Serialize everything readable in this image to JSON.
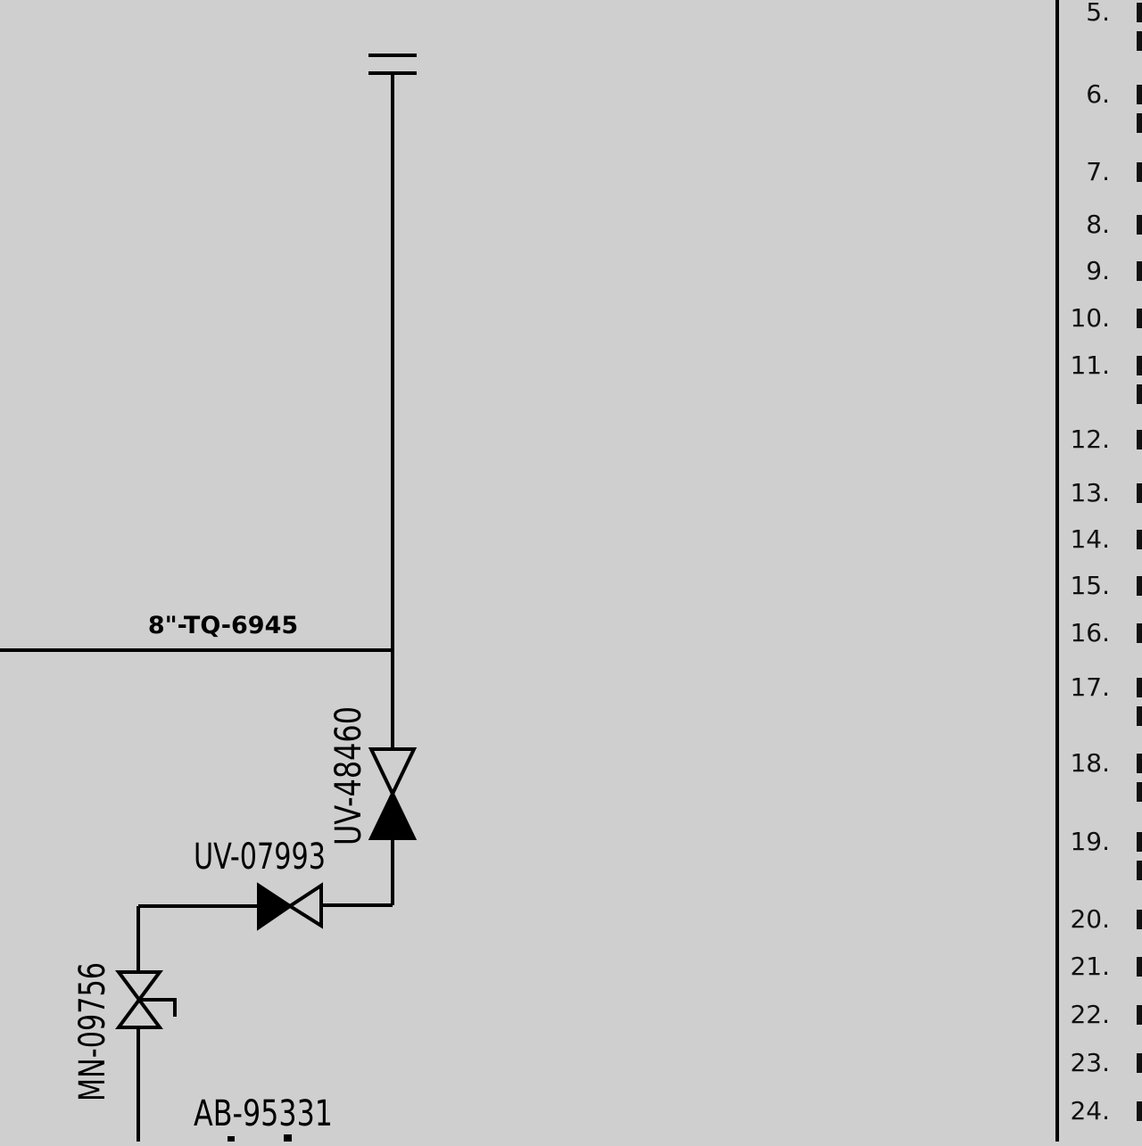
{
  "diagram": {
    "line_label": "8\"-TQ-6945",
    "tags": {
      "uv_48460": "UV-48460",
      "uv_07993": "UV-07993",
      "mn_09756": "MN-09756",
      "ab_95331": "AB-95331"
    }
  },
  "notes": {
    "numbers": [
      "5.",
      "6.",
      "7.",
      "8.",
      "9.",
      "10.",
      "11.",
      "12.",
      "13.",
      "14.",
      "15.",
      "16.",
      "17.",
      "18.",
      "19.",
      "20.",
      "21.",
      "22.",
      "23.",
      "24."
    ]
  },
  "colors": {
    "background": "#cfcfcf",
    "ink": "#000000"
  }
}
